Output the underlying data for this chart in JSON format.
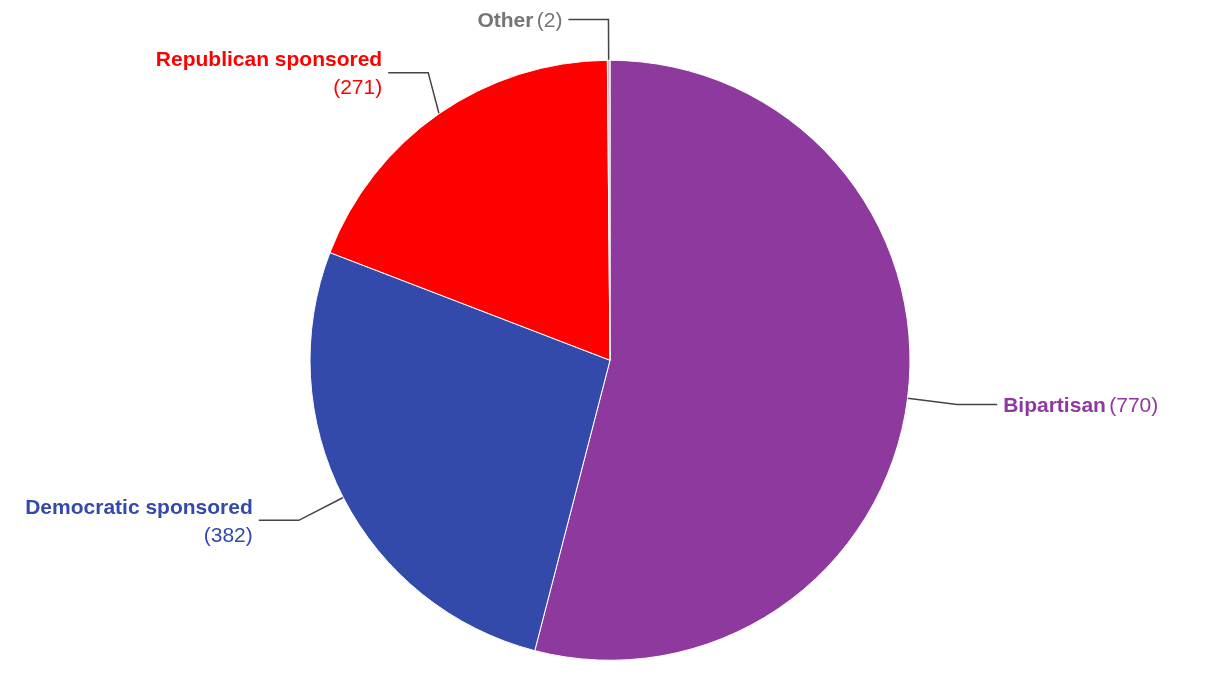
{
  "chart_data": {
    "type": "pie",
    "categories": [
      "Bipartisan",
      "Democratic sponsored",
      "Republican sponsored",
      "Other"
    ],
    "values": [
      770,
      382,
      271,
      2
    ],
    "colors": [
      "#8e399e",
      "#334aab",
      "#ff0000",
      "#bdbdbd"
    ],
    "value_labels": [
      "(770)",
      "(382)",
      "(271)",
      "(2)"
    ],
    "legend": false
  }
}
